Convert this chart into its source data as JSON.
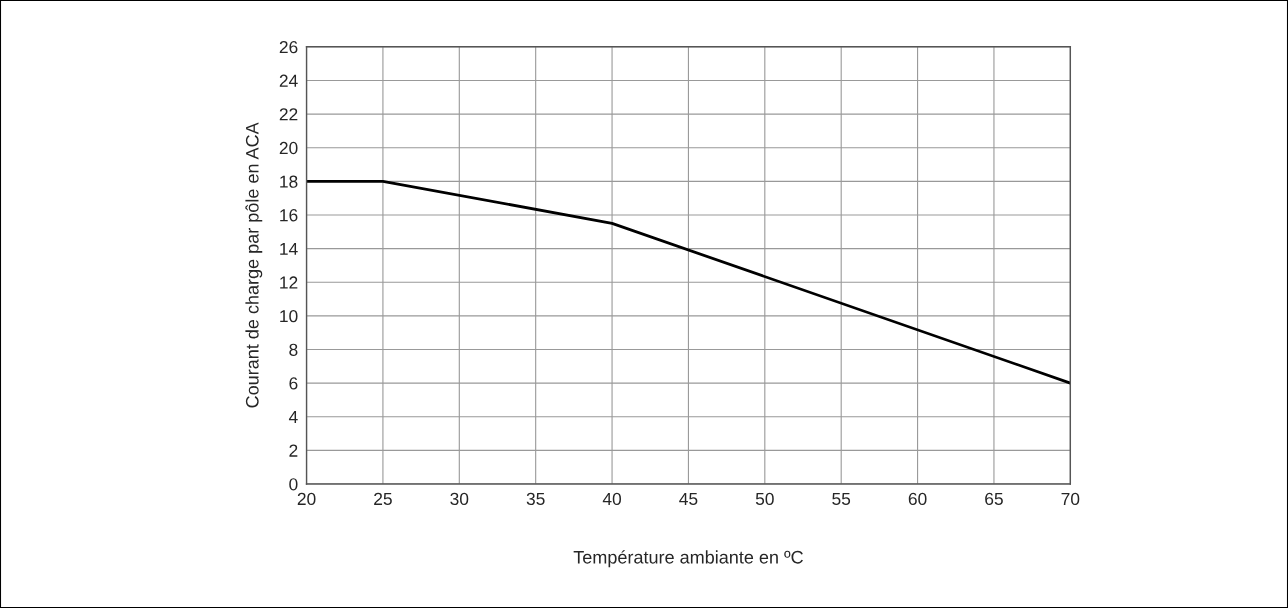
{
  "chart_data": {
    "type": "line",
    "xlabel": "Température ambiante en ºC",
    "ylabel": "Courant de charge par pôle en ACA",
    "x": [
      20,
      25,
      40,
      70
    ],
    "series": [
      {
        "color": "#000000",
        "values": [
          18,
          18,
          15.5,
          6
        ]
      }
    ],
    "xlim": [
      20,
      70
    ],
    "xticks": [
      20,
      25,
      30,
      35,
      40,
      45,
      50,
      55,
      60,
      65,
      70
    ],
    "ylim": [
      0,
      26
    ],
    "yticks": [
      0,
      2,
      4,
      6,
      8,
      10,
      12,
      14,
      16,
      18,
      20,
      22,
      24,
      26
    ],
    "grid": true,
    "legend": false,
    "marker": "none",
    "line_style": "solid"
  }
}
